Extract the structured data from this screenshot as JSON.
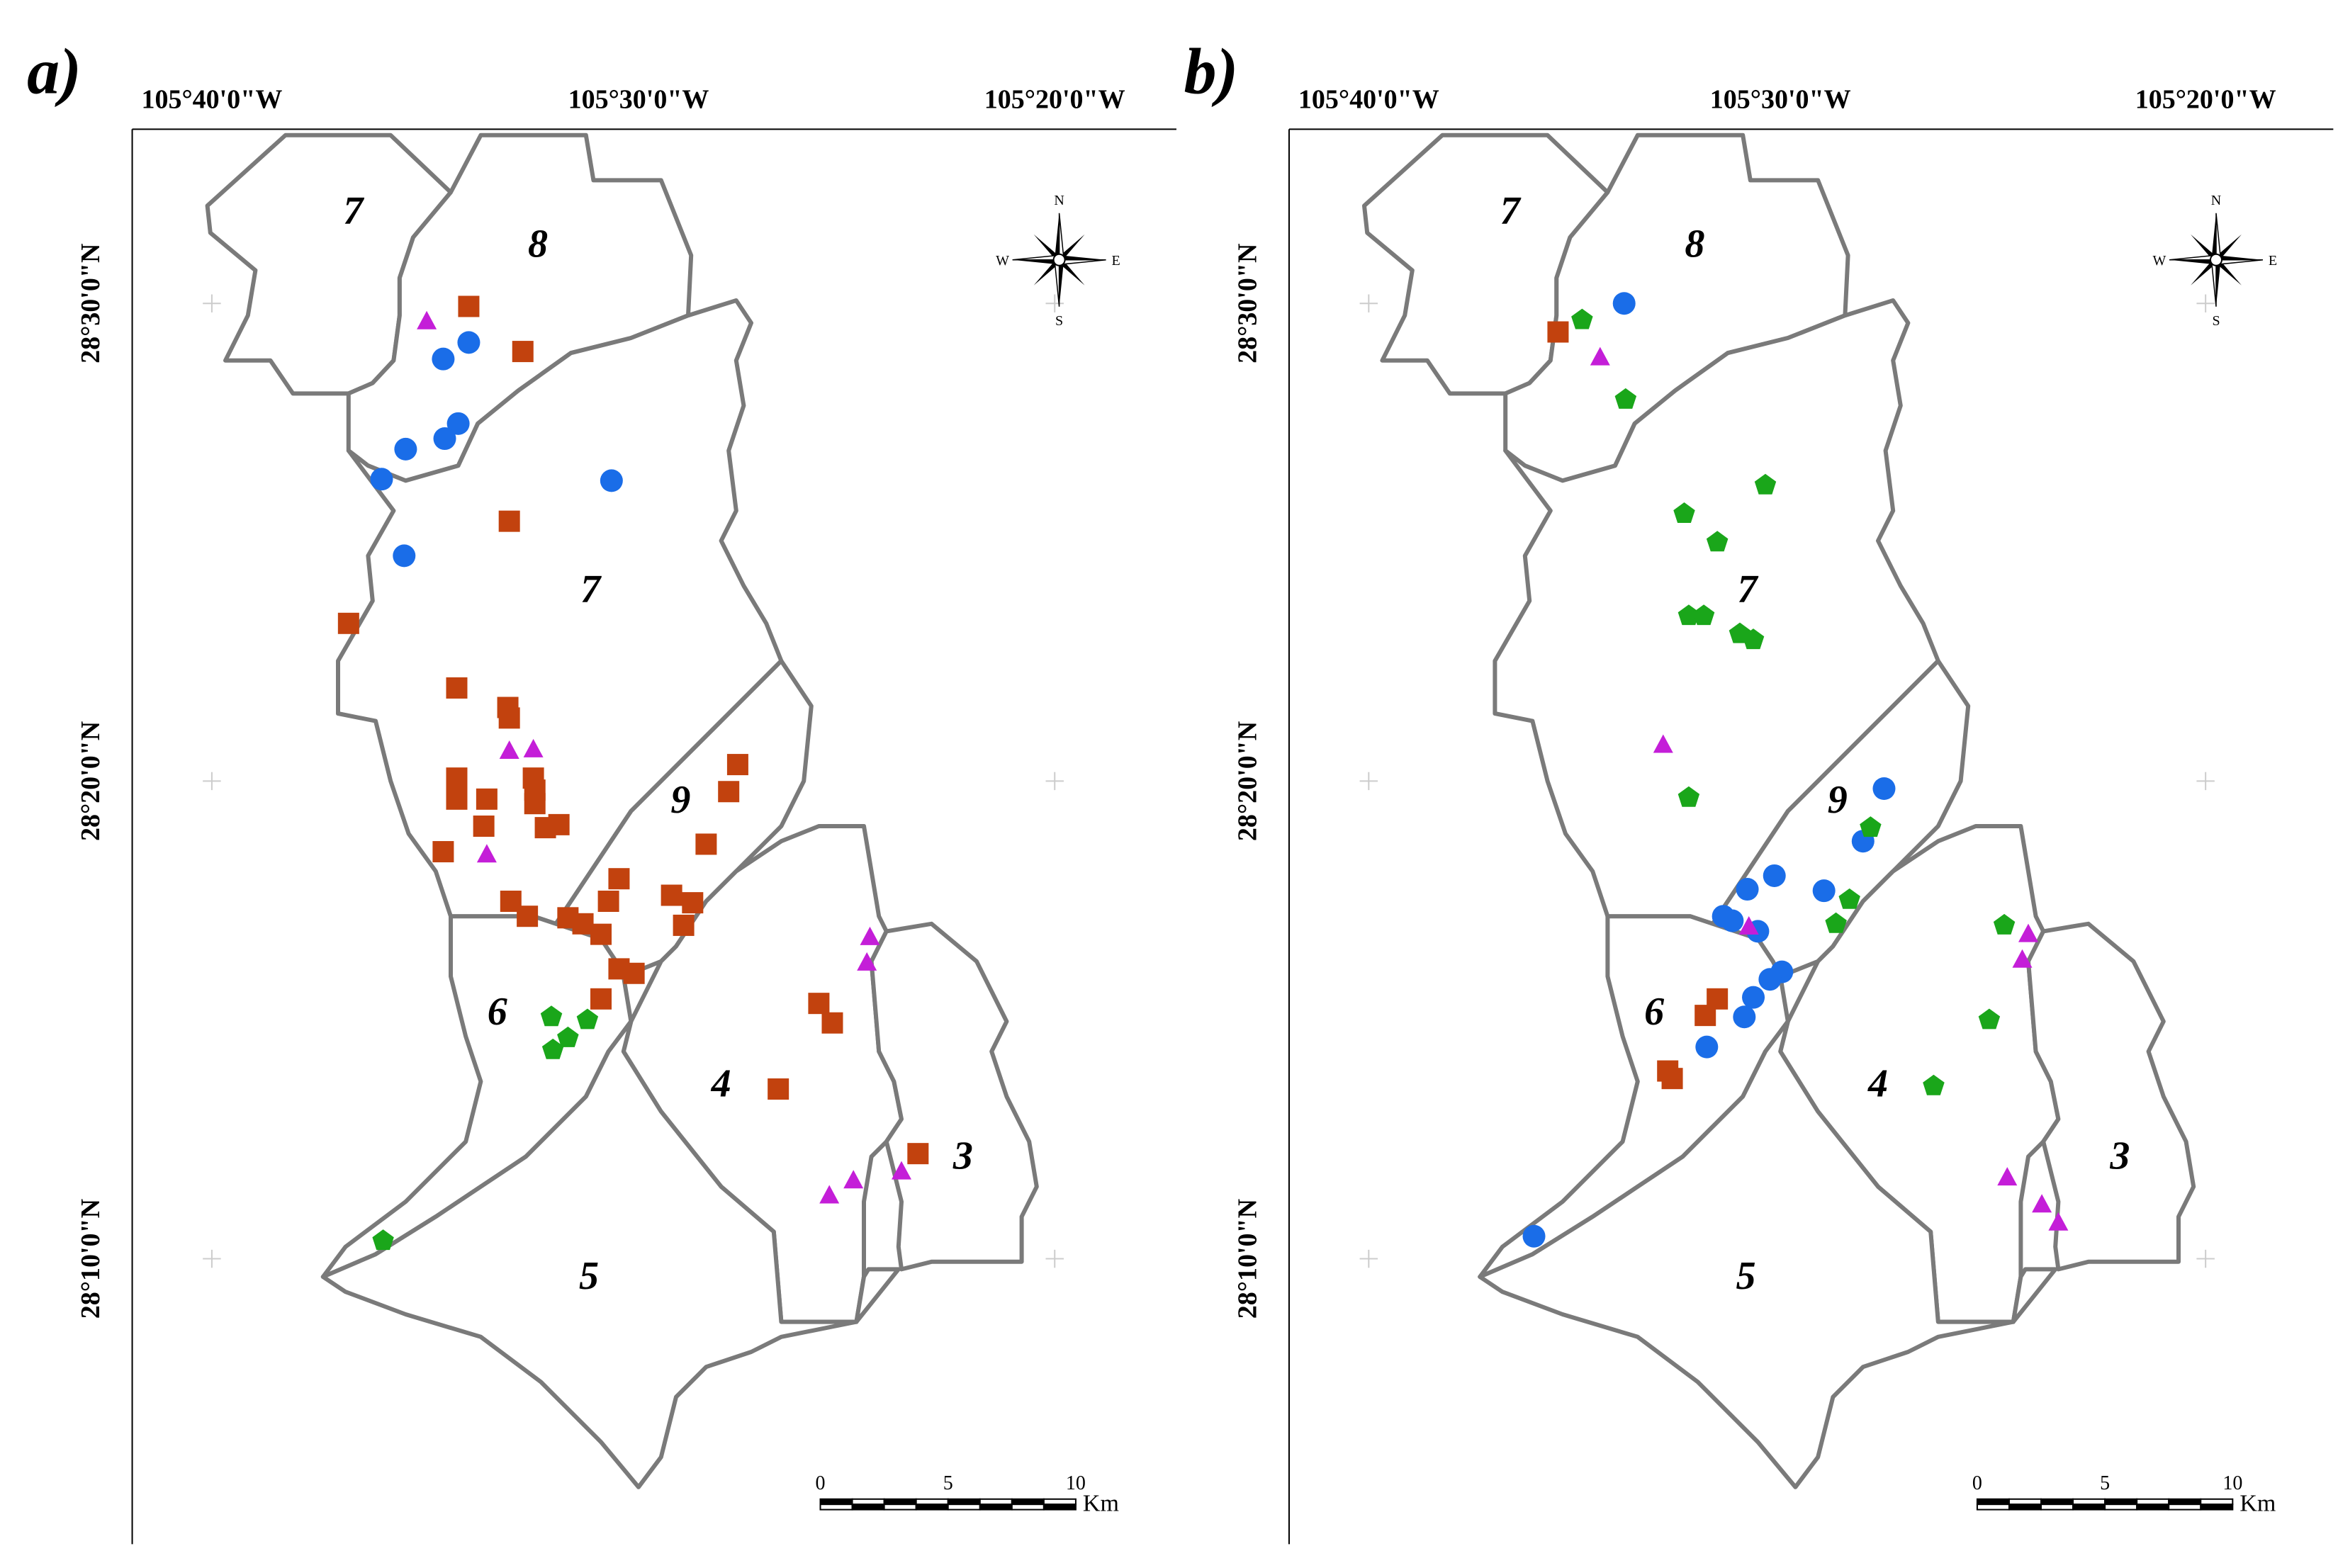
{
  "colors": {
    "square": "#c2420e",
    "circle": "#1a6de8",
    "triangle": "#c41ed8",
    "pentagon": "#1aa61a",
    "boundary": "#7a7a7a"
  },
  "icons": {
    "compass": "compass-rose-icon",
    "square": "square-marker-icon",
    "circle": "circle-marker-icon",
    "triangle": "triangle-marker-icon",
    "pentagon": "pentagon-marker-icon"
  },
  "panels": [
    {
      "letter": "a)",
      "lon_labels": [
        "105°40'0\"W",
        "105°30'0\"W",
        "105°20'0\"W"
      ],
      "lat_labels": [
        "28°30'0\"N",
        "28°20'0\"N",
        "28°10'0\"N"
      ],
      "zones": [
        "7",
        "8",
        "7",
        "9",
        "6",
        "4",
        "3",
        "5"
      ],
      "compass": [
        "N",
        "S",
        "E",
        "W"
      ],
      "scalebar": {
        "ticks": [
          "0",
          "5",
          "10"
        ],
        "unit": "Km"
      }
    },
    {
      "letter": "b)",
      "lon_labels": [
        "105°40'0\"W",
        "105°30'0\"W",
        "105°20'0\"W"
      ],
      "lat_labels": [
        "28°30'0\"N",
        "28°20'0\"N",
        "28°10'0\"N"
      ],
      "zones": [
        "7",
        "8",
        "7",
        "9",
        "6",
        "4",
        "3",
        "5"
      ],
      "compass": [
        "N",
        "S",
        "E",
        "W"
      ],
      "scalebar": {
        "ticks": [
          "0",
          "5",
          "10"
        ],
        "unit": "Km"
      }
    }
  ]
}
